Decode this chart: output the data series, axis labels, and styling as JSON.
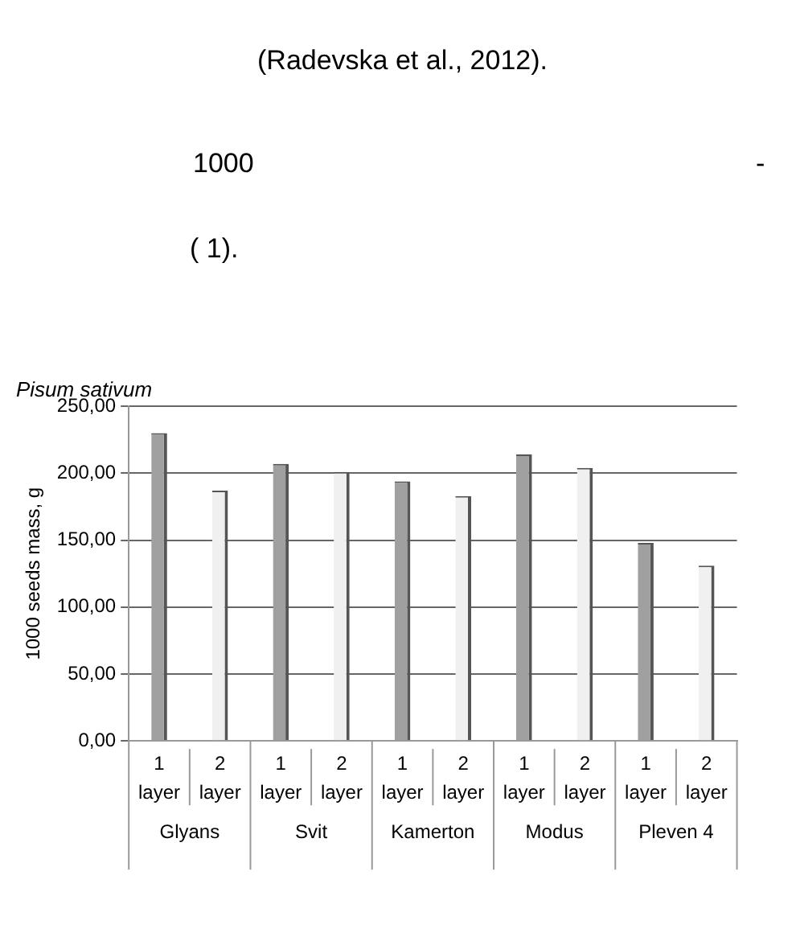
{
  "chart_data": {
    "type": "bar",
    "title": "Pisum sativum",
    "ylabel": "1000 seeds mass, g",
    "annotations": [
      "(Radevska et al., 2012).",
      "1000",
      "-",
      "( 1)."
    ],
    "categories": [
      "Glyans",
      "Svit",
      "Kamerton",
      "Modus",
      "Pleven 4"
    ],
    "series": [
      {
        "name": "1 layer",
        "color": "#a0a0a0",
        "values": [
          230,
          207,
          194,
          214,
          148
        ]
      },
      {
        "name": "2 layer",
        "color": "#f0f0f0",
        "values": [
          187,
          201,
          183,
          204,
          131
        ]
      }
    ],
    "ylim": [
      0,
      250
    ],
    "yticks": [
      {
        "value": 0,
        "label": "0,00"
      },
      {
        "value": 50,
        "label": "50,00"
      },
      {
        "value": 100,
        "label": "100,00"
      },
      {
        "value": 150,
        "label": "150,00"
      },
      {
        "value": 200,
        "label": "200,00"
      },
      {
        "value": 250,
        "label": "250,00"
      }
    ],
    "grid": "y",
    "legend": false
  }
}
